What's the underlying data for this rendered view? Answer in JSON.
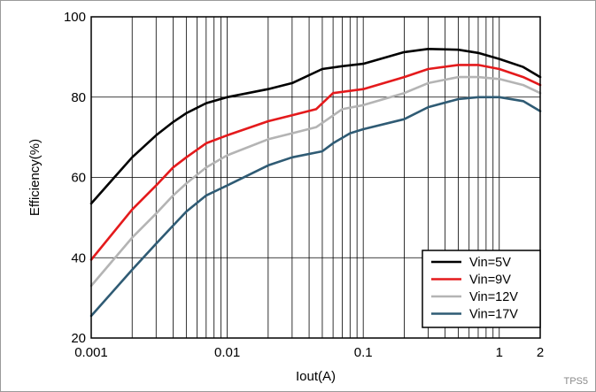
{
  "chart_data": {
    "type": "line",
    "xlabel": "Iout(A)",
    "ylabel": "Efficiency(%)",
    "x_scale": "log",
    "xlim": [
      0.001,
      2
    ],
    "ylim": [
      20,
      100
    ],
    "x_ticks": [
      0.001,
      0.01,
      0.1,
      1,
      2
    ],
    "x_tick_labels": [
      "0.001",
      "0.01",
      "0.1",
      "1",
      "2"
    ],
    "y_ticks": [
      20,
      40,
      60,
      80,
      100
    ],
    "y_tick_labels": [
      "20",
      "40",
      "60",
      "80",
      "100"
    ],
    "grid": true,
    "legend_position": "bottom-right",
    "series": [
      {
        "name": "Vin=5V",
        "color": "#000000",
        "x": [
          0.001,
          0.002,
          0.003,
          0.004,
          0.005,
          0.007,
          0.01,
          0.02,
          0.03,
          0.05,
          0.07,
          0.1,
          0.2,
          0.3,
          0.5,
          0.7,
          1,
          1.5,
          2
        ],
        "y": [
          53.5,
          65,
          70.5,
          73.8,
          76,
          78.5,
          80,
          82,
          83.5,
          87,
          87.7,
          88.3,
          91.2,
          92,
          91.8,
          91,
          89.5,
          87.5,
          85
        ]
      },
      {
        "name": "Vin=9V",
        "color": "#e41a1c",
        "x": [
          0.001,
          0.002,
          0.003,
          0.004,
          0.005,
          0.007,
          0.01,
          0.02,
          0.03,
          0.045,
          0.06,
          0.1,
          0.2,
          0.3,
          0.5,
          0.7,
          1,
          1.5,
          2
        ],
        "y": [
          39.5,
          52,
          58,
          62.5,
          65,
          68.5,
          70.5,
          74,
          75.5,
          77,
          81,
          82,
          85,
          87,
          88,
          88,
          87,
          85,
          83
        ]
      },
      {
        "name": "Vin=12V",
        "color": "#b4b4b4",
        "x": [
          0.001,
          0.002,
          0.003,
          0.004,
          0.005,
          0.007,
          0.01,
          0.02,
          0.03,
          0.045,
          0.07,
          0.1,
          0.2,
          0.3,
          0.5,
          0.7,
          1,
          1.5,
          2
        ],
        "y": [
          33,
          45,
          51,
          55.5,
          58.5,
          62.5,
          65.5,
          69.5,
          71,
          72.5,
          77,
          78,
          81,
          83.5,
          85,
          85,
          84.5,
          83,
          81
        ]
      },
      {
        "name": "Vin=17V",
        "color": "#2f5b74",
        "x": [
          0.001,
          0.002,
          0.003,
          0.004,
          0.005,
          0.007,
          0.01,
          0.02,
          0.03,
          0.05,
          0.06,
          0.08,
          0.1,
          0.2,
          0.3,
          0.5,
          0.7,
          1,
          1.5,
          2
        ],
        "y": [
          25.5,
          37,
          43.5,
          48,
          51.5,
          55.5,
          58,
          63,
          65,
          66.5,
          68.5,
          71,
          72,
          74.5,
          77.5,
          79.5,
          80,
          80,
          79,
          76.5
        ]
      }
    ]
  },
  "watermark": "TPS5"
}
